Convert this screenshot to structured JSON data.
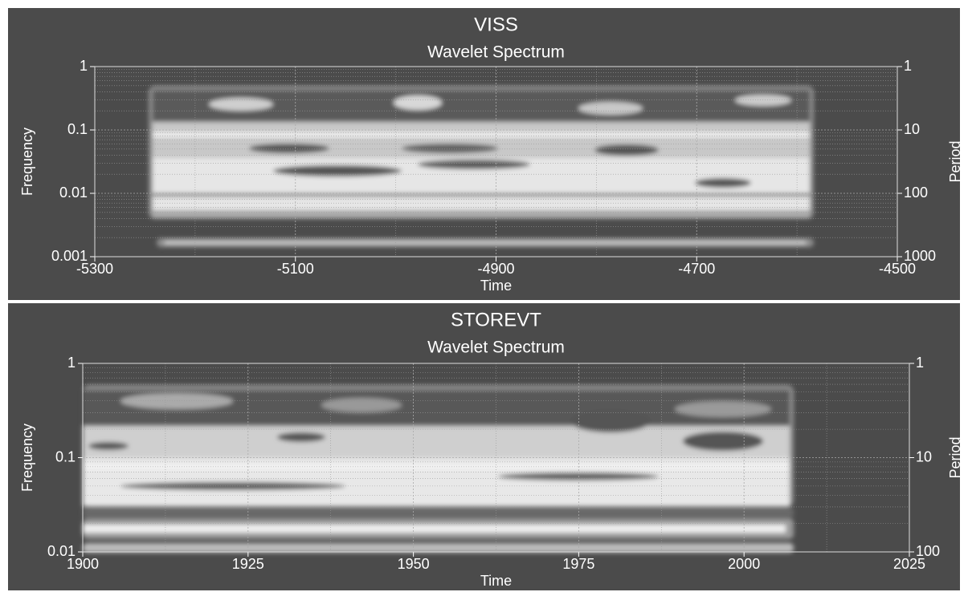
{
  "chart_data": [
    {
      "type": "heatmap",
      "title": "VISS",
      "subtitle": "Wavelet Spectrum",
      "xlabel": "Time",
      "ylabel": "Frequency",
      "y2label": "Period",
      "xlim": [
        -5300,
        -4500
      ],
      "xticks": [
        -5300,
        -5100,
        -4900,
        -4700,
        -4500
      ],
      "ylim": [
        0.001,
        1
      ],
      "yticks": [
        0.001,
        0.01,
        0.1,
        1
      ],
      "y2lim": [
        1000,
        1
      ],
      "y2ticks": [
        1000,
        100,
        10,
        1
      ],
      "log_scale": true,
      "grid": true
    },
    {
      "type": "heatmap",
      "title": "STOREVT",
      "subtitle": "Wavelet Spectrum",
      "xlabel": "Time",
      "ylabel": "Frequency",
      "y2label": "Period",
      "xlim": [
        1900,
        2025
      ],
      "xticks": [
        1900,
        1925,
        1950,
        1975,
        2000,
        2025
      ],
      "ylim": [
        0.01,
        1
      ],
      "yticks": [
        0.01,
        0.1,
        1
      ],
      "y2lim": [
        100,
        1
      ],
      "y2ticks": [
        100,
        10,
        1
      ],
      "log_scale": true,
      "grid": true
    }
  ]
}
